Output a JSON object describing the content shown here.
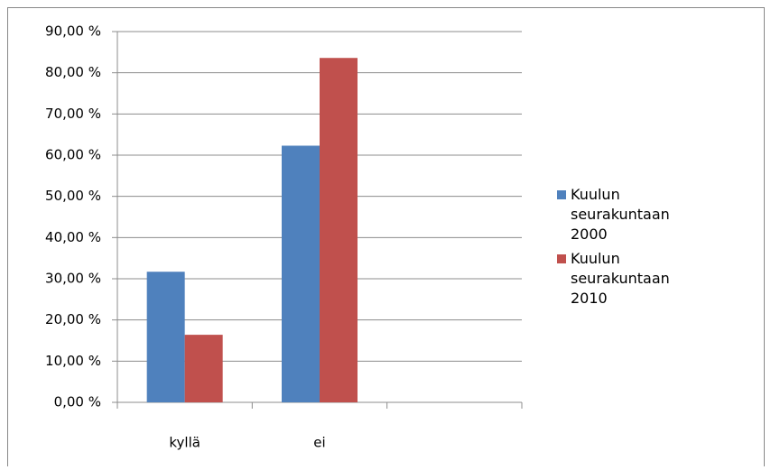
{
  "chart_data": {
    "type": "bar",
    "categories": [
      "kyllä",
      "ei",
      null
    ],
    "series": [
      {
        "name": "Kuulun seurakuntaan 2000",
        "color": "#4f81bd",
        "values": [
          31.7,
          62.3,
          null
        ]
      },
      {
        "name": "Kuulun seurakuntaan 2010",
        "color": "#c0504d",
        "values": [
          16.4,
          83.6,
          null
        ]
      }
    ],
    "ylim": [
      0,
      90
    ],
    "yticks": [
      {
        "value": 0,
        "label": "0,00 %"
      },
      {
        "value": 10,
        "label": "10,00 %"
      },
      {
        "value": 20,
        "label": "20,00 %"
      },
      {
        "value": 30,
        "label": "30,00 %"
      },
      {
        "value": 40,
        "label": "40,00 %"
      },
      {
        "value": 50,
        "label": "50,00 %"
      },
      {
        "value": 60,
        "label": "60,00 %"
      },
      {
        "value": 70,
        "label": "70,00 %"
      },
      {
        "value": 80,
        "label": "80,00 %"
      },
      {
        "value": 90,
        "label": "90,00 %"
      }
    ],
    "grid": true,
    "legend": "right"
  }
}
